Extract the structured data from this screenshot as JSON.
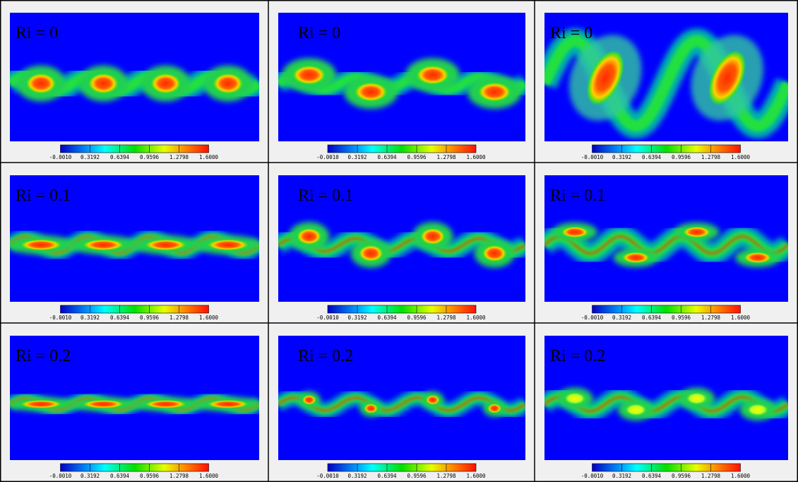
{
  "rows": [
    [
      {
        "label": "Ri = 0"
      },
      {
        "label": "Ri = 0"
      },
      {
        "label": "Ri = 0"
      }
    ],
    [
      {
        "label": "Ri = 0.1"
      },
      {
        "label": "Ri = 0.1"
      },
      {
        "label": "Ri = 0.1"
      }
    ],
    [
      {
        "label": "Ri = 0.2"
      },
      {
        "label": "Ri = 0.2"
      },
      {
        "label": "Ri = 0.2"
      }
    ]
  ],
  "colorbar": {
    "ticks": [
      "-0.0010",
      "0.3192",
      "0.6394",
      "0.9596",
      "1.2798",
      "1.6000"
    ]
  }
}
